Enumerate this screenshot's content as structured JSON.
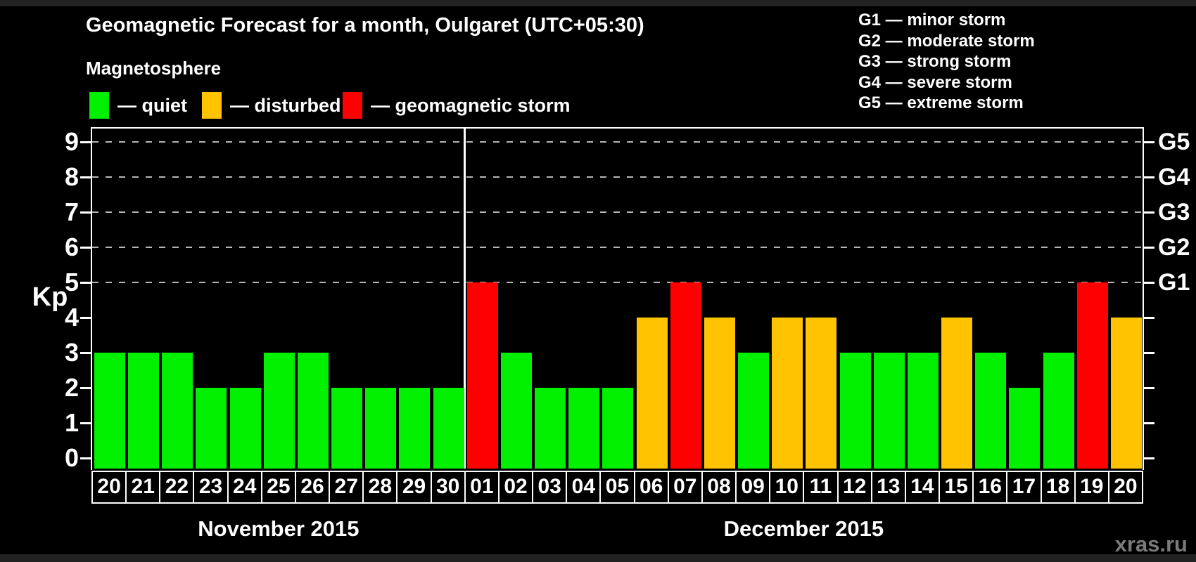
{
  "title": "Geomagnetic Forecast for a month, Oulgaret (UTC+05:30)",
  "legend": {
    "heading": "Magnetosphere",
    "items": [
      {
        "key": "quiet",
        "label": "— quiet",
        "color": "#00F000"
      },
      {
        "key": "disturbed",
        "label": "— disturbed",
        "color": "#FFC301"
      },
      {
        "key": "storm",
        "label": "— geomagnetic storm",
        "color": "#FF0000"
      }
    ]
  },
  "g_scale_legend": [
    "G1 — minor storm",
    "G2 — moderate storm",
    "G3 — strong storm",
    "G4 — severe storm",
    "G5 — extreme storm"
  ],
  "watermark": "xras.ru",
  "chart_data": {
    "type": "bar",
    "title": "Geomagnetic Forecast for a month, Oulgaret (UTC+05:30)",
    "ylabel": "Kp",
    "ylim": [
      0,
      9.4
    ],
    "yticks": [
      "0",
      "1",
      "2",
      "3",
      "4",
      "5",
      "6",
      "7",
      "8",
      "9"
    ],
    "gridlines_at": [
      5,
      6,
      7,
      8,
      9
    ],
    "grid": "dashed horizontal at G-levels only",
    "right_axis_labels": [
      {
        "label": "G1",
        "kp": 5
      },
      {
        "label": "G2",
        "kp": 6
      },
      {
        "label": "G3",
        "kp": 7
      },
      {
        "label": "G4",
        "kp": 8
      },
      {
        "label": "G5",
        "kp": 9
      }
    ],
    "months": [
      {
        "label": "November 2015",
        "days": 11
      },
      {
        "label": "December 2015",
        "days": 20
      }
    ],
    "categories": [
      "20",
      "21",
      "22",
      "23",
      "24",
      "25",
      "26",
      "27",
      "28",
      "29",
      "30",
      "01",
      "02",
      "03",
      "04",
      "05",
      "06",
      "07",
      "08",
      "09",
      "10",
      "11",
      "12",
      "13",
      "14",
      "15",
      "16",
      "17",
      "18",
      "19",
      "20"
    ],
    "values": [
      3,
      3,
      3,
      2,
      2,
      3,
      3,
      2,
      2,
      2,
      2,
      5,
      3,
      2,
      2,
      2,
      4,
      5,
      4,
      3,
      4,
      4,
      3,
      3,
      3,
      4,
      3,
      2,
      3,
      5,
      4
    ],
    "status": [
      "quiet",
      "quiet",
      "quiet",
      "quiet",
      "quiet",
      "quiet",
      "quiet",
      "quiet",
      "quiet",
      "quiet",
      "quiet",
      "storm",
      "quiet",
      "quiet",
      "quiet",
      "quiet",
      "disturbed",
      "storm",
      "disturbed",
      "quiet",
      "disturbed",
      "disturbed",
      "quiet",
      "quiet",
      "quiet",
      "disturbed",
      "quiet",
      "quiet",
      "quiet",
      "storm",
      "disturbed"
    ]
  }
}
